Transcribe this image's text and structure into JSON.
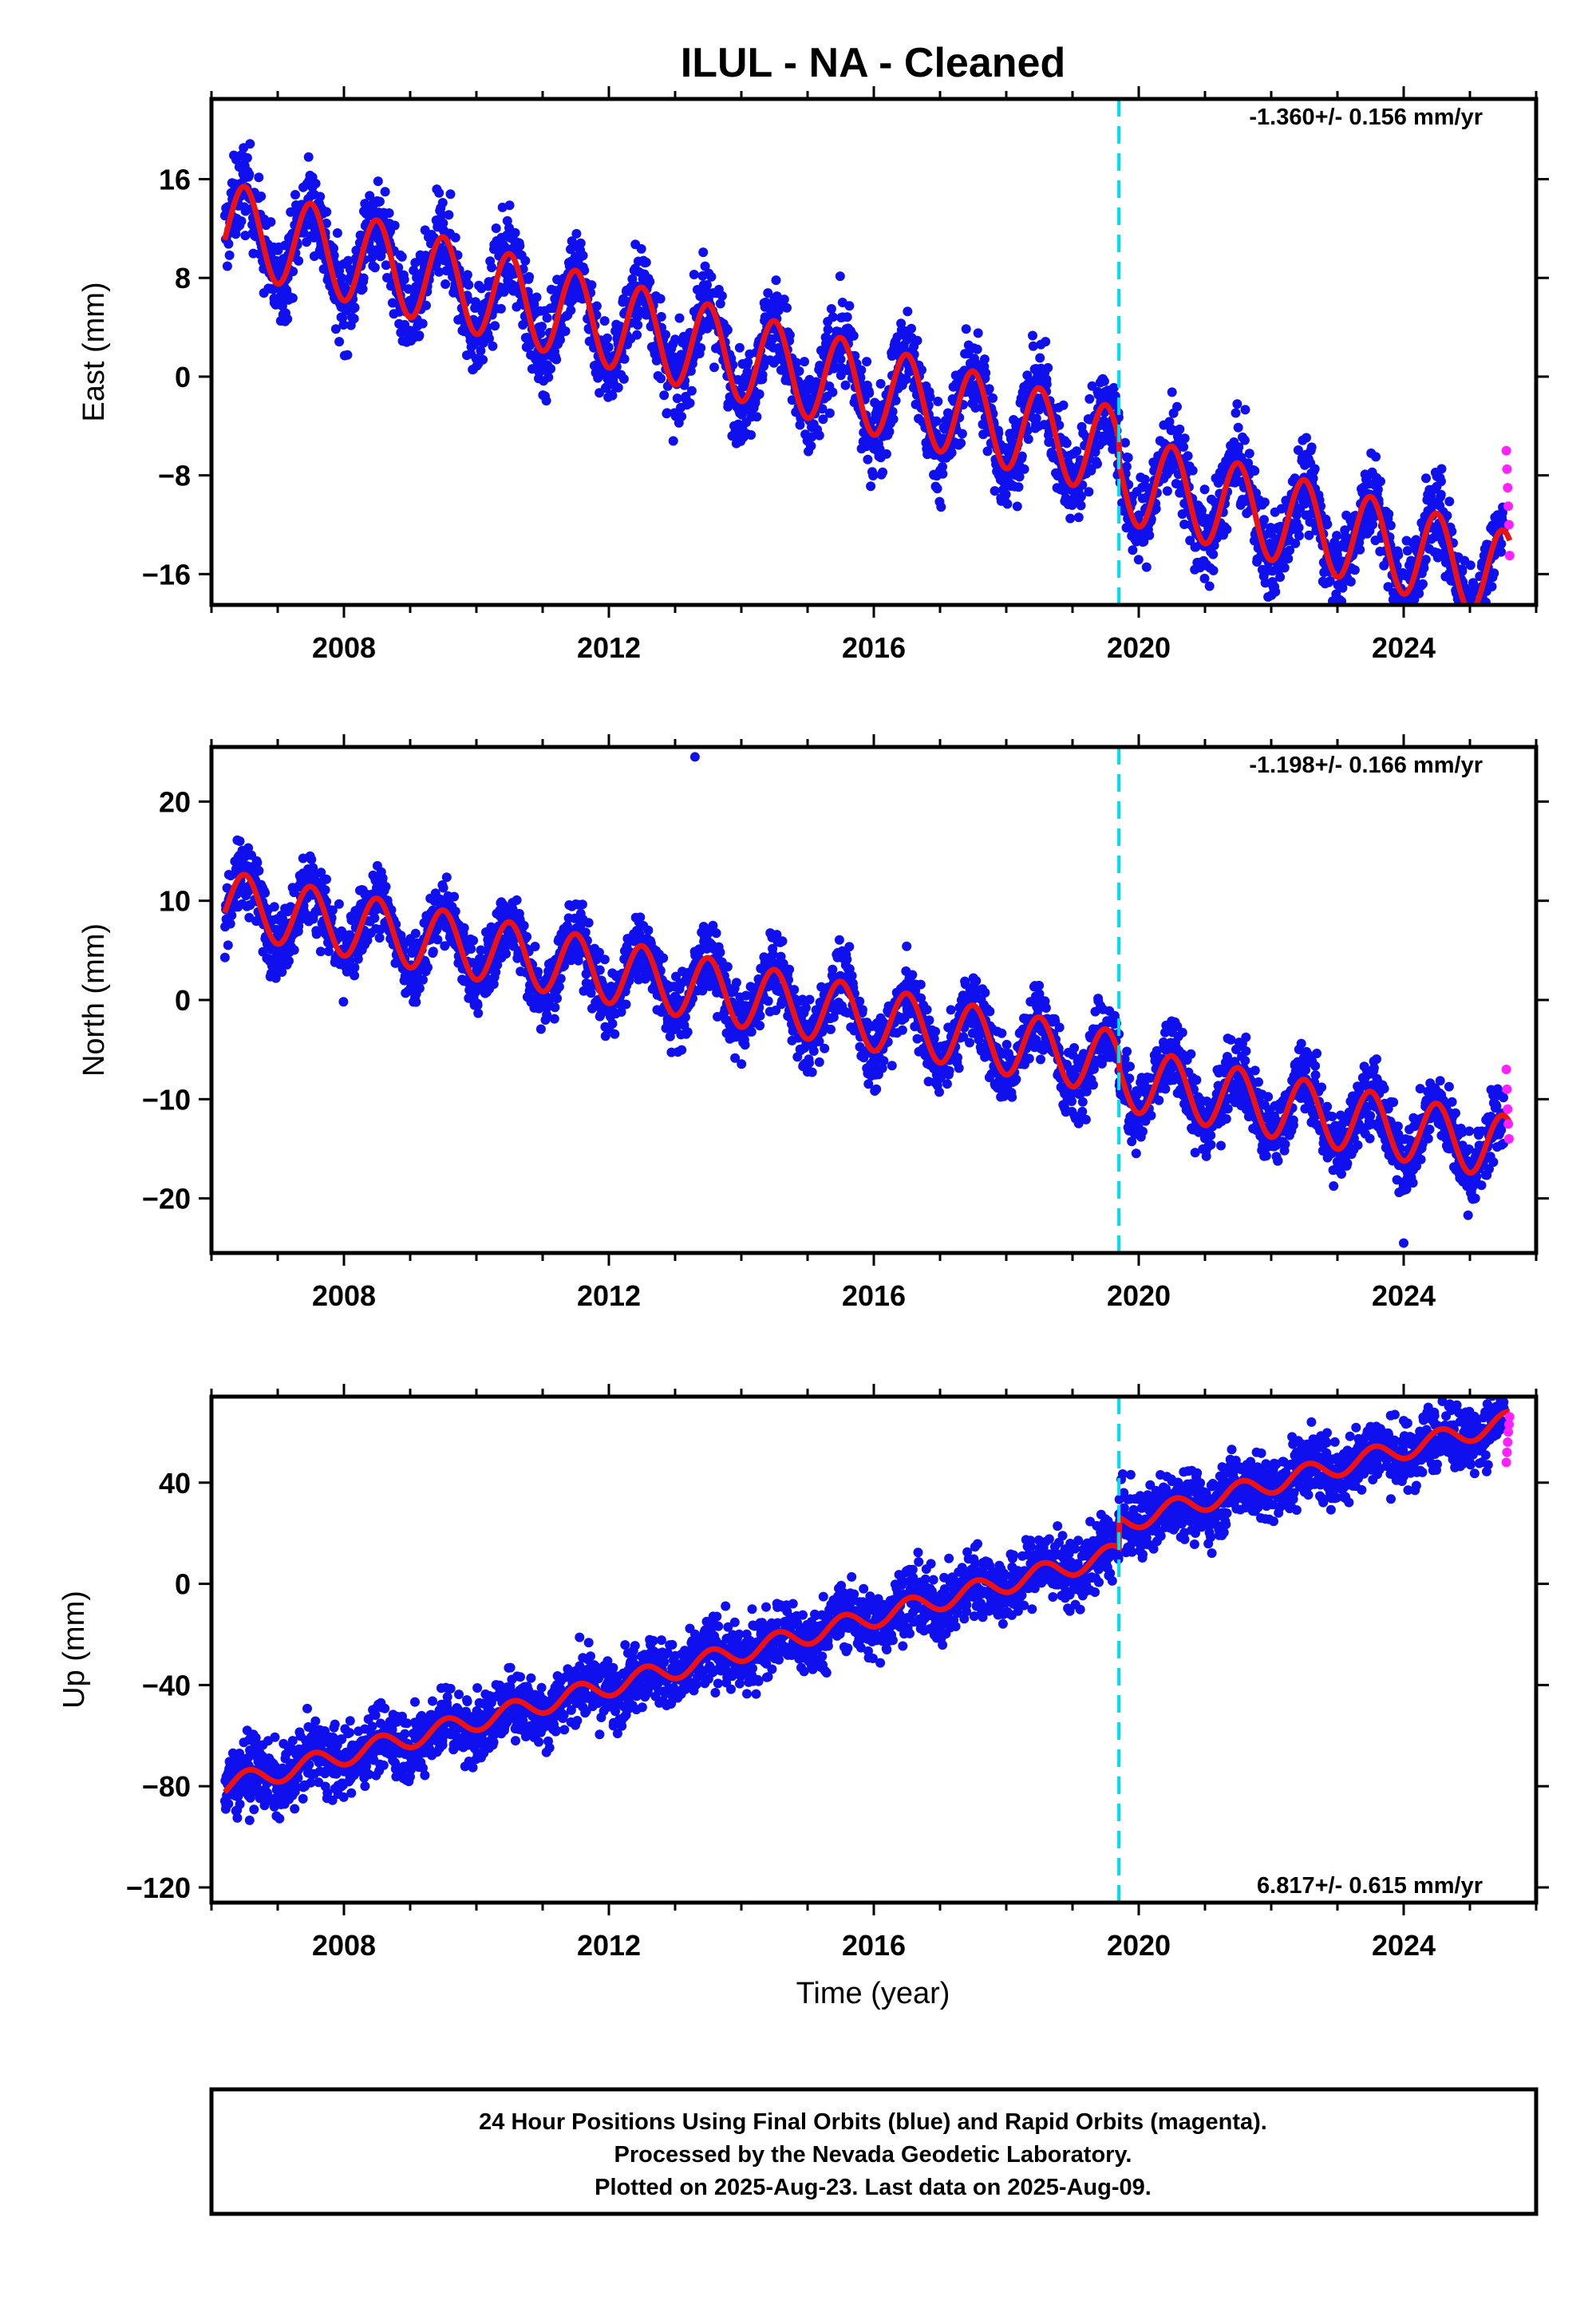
{
  "title": "ILUL  - NA - Cleaned",
  "x_axis_label": "Time (year)",
  "colors": {
    "final_orbits": "#1010ee",
    "rapid_orbits": "#ff22ff",
    "model_fit": "#ee1111",
    "event_line": "#00ddee"
  },
  "footer": {
    "line1": "24 Hour Positions Using Final Orbits (blue) and Rapid Orbits (magenta).",
    "line2": "Processed by the Nevada Geodetic Laboratory.",
    "line3": "Plotted on 2025-Aug-23. Last data on 2025-Aug-09."
  },
  "chart_data": [
    {
      "type": "scatter",
      "component": "east",
      "ylabel": "East (mm)",
      "rate_label": "-1.360+/- 0.156 mm/yr",
      "rate_position": "top-right",
      "xlim": [
        2006.0,
        2026.0
      ],
      "ylim": [
        -18.5,
        22.5
      ],
      "xticks": [
        2008,
        2012,
        2016,
        2020,
        2024
      ],
      "yticks": [
        16,
        8,
        0,
        -8,
        -16
      ],
      "ytick_labels": [
        "16",
        "8",
        "0",
        "−8",
        "−16"
      ],
      "event_line_year": 2019.7,
      "model": {
        "start_year": 2006.2,
        "end_year": 2025.6,
        "value_at_start": 12.2,
        "trend_mm_per_yr": -1.36,
        "annual_amplitude": 3.6,
        "annual_peak_doy_fraction": 0.5,
        "offset_at_event": -2.0,
        "value_at_end": -9.5
      },
      "scatter": {
        "spread": 3.2,
        "density_per_year": 170
      },
      "rapid_points": [
        {
          "x": 2025.55,
          "y": -6.0
        },
        {
          "x": 2025.56,
          "y": -7.5
        },
        {
          "x": 2025.57,
          "y": -9.0
        },
        {
          "x": 2025.58,
          "y": -10.5
        },
        {
          "x": 2025.59,
          "y": -12.0
        },
        {
          "x": 2025.6,
          "y": -14.5
        }
      ]
    },
    {
      "type": "scatter",
      "component": "north",
      "ylabel": "North (mm)",
      "rate_label": "-1.198+/- 0.166 mm/yr",
      "rate_position": "top-right",
      "xlim": [
        2006.0,
        2026.0
      ],
      "ylim": [
        -25.5,
        25.5
      ],
      "xticks": [
        2008,
        2012,
        2016,
        2020,
        2024
      ],
      "yticks": [
        20,
        10,
        0,
        -10,
        -20
      ],
      "ytick_labels": [
        "20",
        "10",
        "0",
        "−10",
        "−20"
      ],
      "event_line_year": 2019.7,
      "model": {
        "start_year": 2006.2,
        "end_year": 2025.6,
        "value_at_start": 9.8,
        "trend_mm_per_yr": -1.198,
        "annual_amplitude": 3.2,
        "annual_peak_doy_fraction": 0.5,
        "offset_at_event": -1.5,
        "value_at_end": -9.0
      },
      "scatter": {
        "spread": 3.2,
        "density_per_year": 170
      },
      "outliers": [
        {
          "x": 2013.3,
          "y": 24.5
        },
        {
          "x": 2024.0,
          "y": -24.5
        }
      ],
      "rapid_points": [
        {
          "x": 2025.55,
          "y": -7.0
        },
        {
          "x": 2025.56,
          "y": -9.0
        },
        {
          "x": 2025.57,
          "y": -11.0
        },
        {
          "x": 2025.58,
          "y": -12.5
        },
        {
          "x": 2025.59,
          "y": -14.0
        }
      ]
    },
    {
      "type": "scatter",
      "component": "up",
      "ylabel": "Up (mm)",
      "rate_label": "6.817+/- 0.615 mm/yr",
      "rate_position": "bottom-right",
      "xlim": [
        2006.0,
        2026.0
      ],
      "ylim": [
        -126,
        74
      ],
      "xticks": [
        2008,
        2012,
        2016,
        2020,
        2024
      ],
      "yticks": [
        40,
        0,
        -40,
        -80,
        -120
      ],
      "ytick_labels": [
        "40",
        "0",
        "−40",
        "−80",
        "−120"
      ],
      "event_line_year": 2019.7,
      "model": {
        "start_year": 2006.2,
        "end_year": 2025.6,
        "value_at_start": -80,
        "trend_mm_per_yr": 6.817,
        "annual_amplitude": 4.0,
        "annual_peak_doy_fraction": 0.55,
        "offset_at_event": 12.0,
        "value_at_end": 58
      },
      "scatter": {
        "spread": 12,
        "density_per_year": 170
      },
      "rapid_points": [
        {
          "x": 2025.55,
          "y": 48
        },
        {
          "x": 2025.56,
          "y": 52
        },
        {
          "x": 2025.57,
          "y": 56
        },
        {
          "x": 2025.58,
          "y": 60
        },
        {
          "x": 2025.59,
          "y": 63
        },
        {
          "x": 2025.6,
          "y": 66
        }
      ]
    }
  ]
}
